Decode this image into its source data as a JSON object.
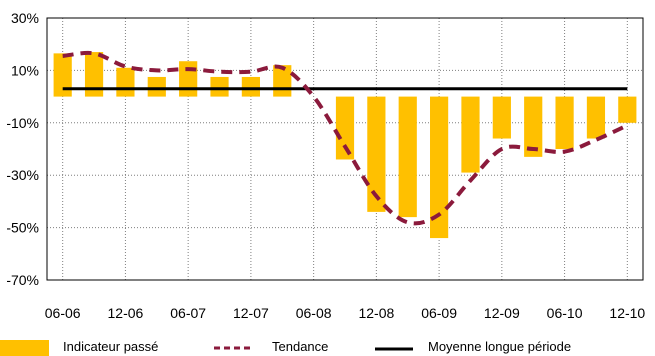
{
  "chart_data": {
    "type": "bar",
    "title": "",
    "xlabel": "",
    "ylabel": "",
    "ylim": [
      -70,
      30
    ],
    "y_ticks": [
      "30%",
      "10%",
      "-10%",
      "-30%",
      "-50%",
      "-70%"
    ],
    "y_tick_values": [
      30,
      10,
      -10,
      -30,
      -50,
      -70
    ],
    "x_tick_labels": [
      "06-06",
      "12-06",
      "06-07",
      "12-07",
      "06-08",
      "12-08",
      "06-09",
      "12-09",
      "06-10",
      "12-10"
    ],
    "categories": [
      "06-06",
      "09-06",
      "12-06",
      "03-07",
      "06-07",
      "09-07",
      "12-07",
      "03-08",
      "06-08",
      "09-08",
      "12-08",
      "03-09",
      "06-09",
      "09-09",
      "12-09",
      "03-10",
      "06-10",
      "09-10",
      "12-10"
    ],
    "grid": true,
    "legend_position": "bottom",
    "series": [
      {
        "name": "Indicateur passé",
        "type": "bar",
        "color": "#FFC000",
        "values": [
          16.5,
          17,
          11,
          7.5,
          13.5,
          7.5,
          7.5,
          12,
          0,
          -24,
          -44,
          -46,
          -54,
          -29,
          -16,
          -23,
          -20,
          -16,
          -10
        ]
      },
      {
        "name": "Tendance",
        "type": "line",
        "style": "dashed",
        "color": "#8B1A3C",
        "values": [
          15.5,
          16.5,
          11.5,
          10,
          10.5,
          9.5,
          9.5,
          11,
          0,
          -19,
          -38,
          -48,
          -45,
          -32,
          -20,
          -20,
          -21,
          -16.5,
          -11
        ]
      },
      {
        "name": "Moyenne longue période",
        "type": "line",
        "style": "solid",
        "color": "#000000",
        "values": [
          3,
          3,
          3,
          3,
          3,
          3,
          3,
          3,
          3,
          3,
          3,
          3,
          3,
          3,
          3,
          3,
          3,
          3,
          3
        ]
      }
    ]
  }
}
